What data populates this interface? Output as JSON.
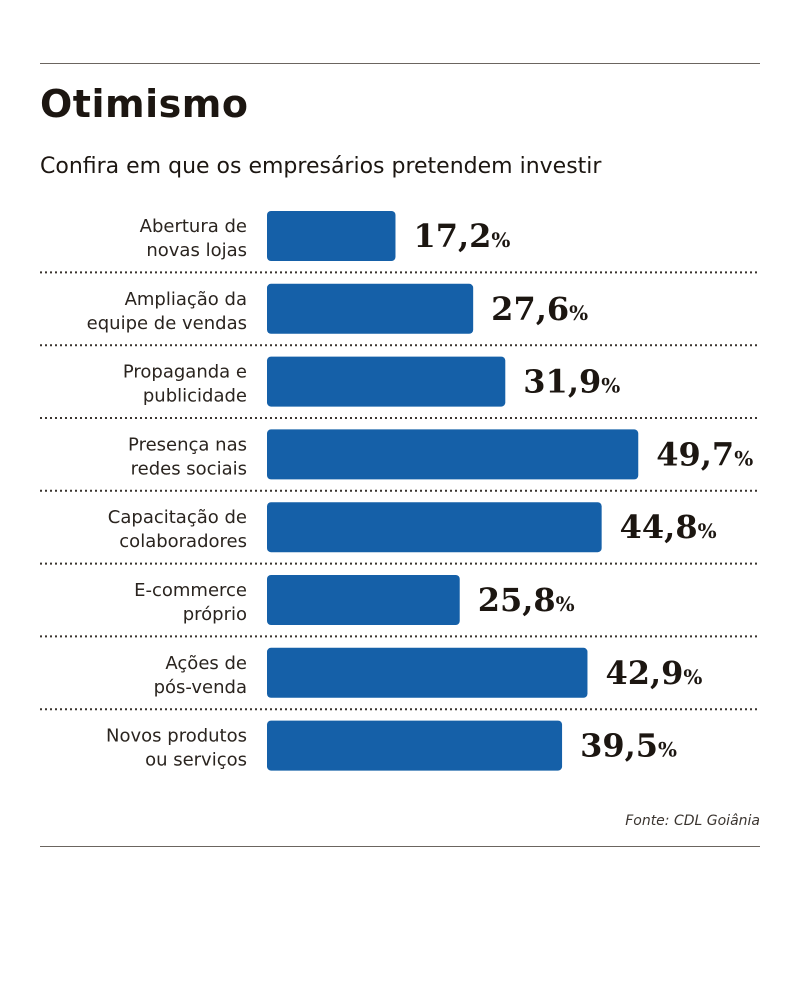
{
  "header": {
    "title": "Otimismo",
    "subtitle": "Confira em que os empresários pretendem investir"
  },
  "footer": {
    "source": "Fonte: CDL Goiânia"
  },
  "colors": {
    "bar": "#1560a8",
    "text": "#1c1611"
  },
  "chart_data": {
    "type": "bar",
    "orientation": "horizontal",
    "title": "Otimismo",
    "subtitle": "Confira em que os empresários pretendem investir",
    "categories": [
      [
        "Abertura de",
        "novas lojas"
      ],
      [
        "Ampliação da",
        "equipe de vendas"
      ],
      [
        "Propaganda e",
        "publicidade"
      ],
      [
        "Presença nas",
        "redes sociais"
      ],
      [
        "Capacitação de",
        "colaboradores"
      ],
      [
        "E-commerce",
        "próprio"
      ],
      [
        "Ações de",
        "pós-venda"
      ],
      [
        "Novos produtos",
        "ou serviços"
      ]
    ],
    "values": [
      17.2,
      27.6,
      31.9,
      49.7,
      44.8,
      25.8,
      42.9,
      39.5
    ],
    "value_labels": [
      "17,2",
      "27,6",
      "31,9",
      "49,7",
      "44,8",
      "25,8",
      "42,9",
      "39,5"
    ],
    "unit": "%",
    "grid": false,
    "legend": "none"
  }
}
